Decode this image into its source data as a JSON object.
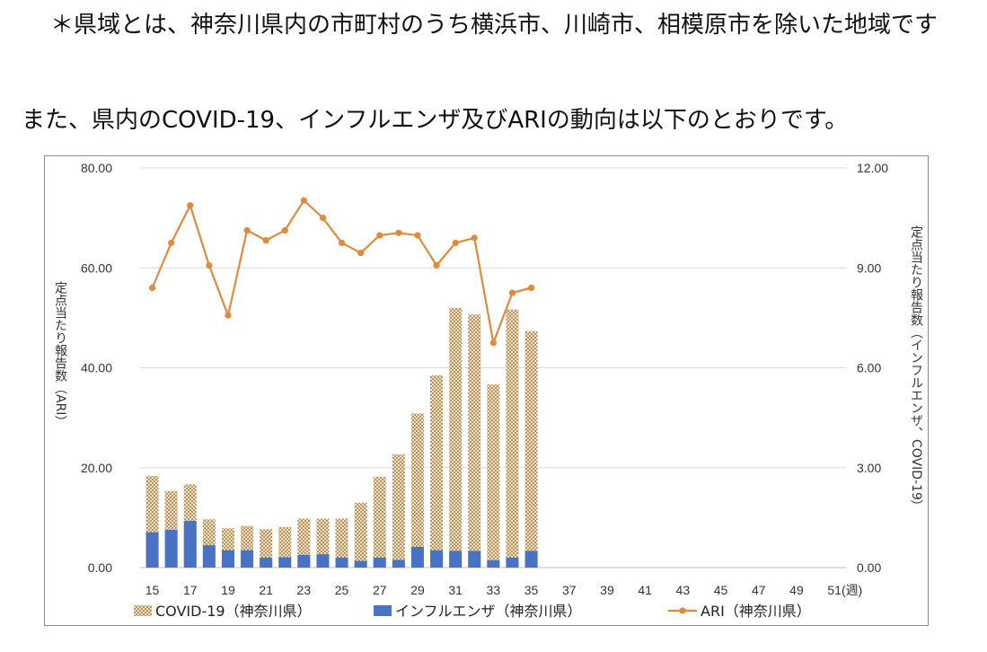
{
  "note": "＊県域とは、神奈川県内の市町村のうち横浜市、川崎市、相模原市を除いた地域です",
  "lead": "また、県内のCOVID-19、インフルエンザ及びARIの動向は以下のとおりです。",
  "chart_data": {
    "type": "bar",
    "x": [
      15,
      16,
      17,
      18,
      19,
      20,
      21,
      22,
      23,
      24,
      25,
      26,
      27,
      28,
      29,
      30,
      31,
      32,
      33,
      34,
      35
    ],
    "x_ticks": [
      "15",
      "17",
      "19",
      "21",
      "23",
      "25",
      "27",
      "29",
      "31",
      "33",
      "35",
      "37",
      "39",
      "41",
      "43",
      "45",
      "47",
      "49",
      "51"
    ],
    "x_unit": "(週)",
    "xlim": [
      15,
      52
    ],
    "ylabel_left": "定点当たり報告数（ARI）",
    "ylabel_right": "定点当たり報告数（インフルエンザ、COVID-19）",
    "ylim_left": [
      0,
      80
    ],
    "yticks_left": [
      "0.00",
      "20.00",
      "40.00",
      "60.00",
      "80.00"
    ],
    "ylim_right": [
      0,
      12
    ],
    "yticks_right": [
      "0.00",
      "3.00",
      "6.00",
      "9.00",
      "12.00"
    ],
    "grid": true,
    "legend_position": "bottom",
    "series": [
      {
        "name": "COVID-19（神奈川県）",
        "kind": "bar",
        "axis": "right",
        "color": "#c8a878",
        "values": [
          2.75,
          2.3,
          2.5,
          1.45,
          1.18,
          1.25,
          1.15,
          1.22,
          1.47,
          1.47,
          1.47,
          1.95,
          2.73,
          3.4,
          4.63,
          5.77,
          7.8,
          7.6,
          5.5,
          7.75,
          7.1
        ]
      },
      {
        "name": "インフルエンザ（神奈川県）",
        "kind": "bar",
        "axis": "right",
        "color": "#4a72c4",
        "values": [
          1.06,
          1.13,
          1.4,
          0.67,
          0.52,
          0.52,
          0.3,
          0.31,
          0.38,
          0.4,
          0.3,
          0.2,
          0.3,
          0.23,
          0.62,
          0.52,
          0.5,
          0.5,
          0.22,
          0.3,
          0.5
        ]
      },
      {
        "name": "ARI（神奈川県）",
        "kind": "line",
        "axis": "left",
        "color": "#e08a3c",
        "values": [
          56,
          65,
          72.5,
          60.5,
          50.5,
          67.5,
          65.5,
          67.5,
          73.5,
          70,
          65,
          63,
          66.5,
          67,
          66.5,
          60.5,
          65,
          66,
          45,
          55,
          56
        ]
      }
    ]
  }
}
